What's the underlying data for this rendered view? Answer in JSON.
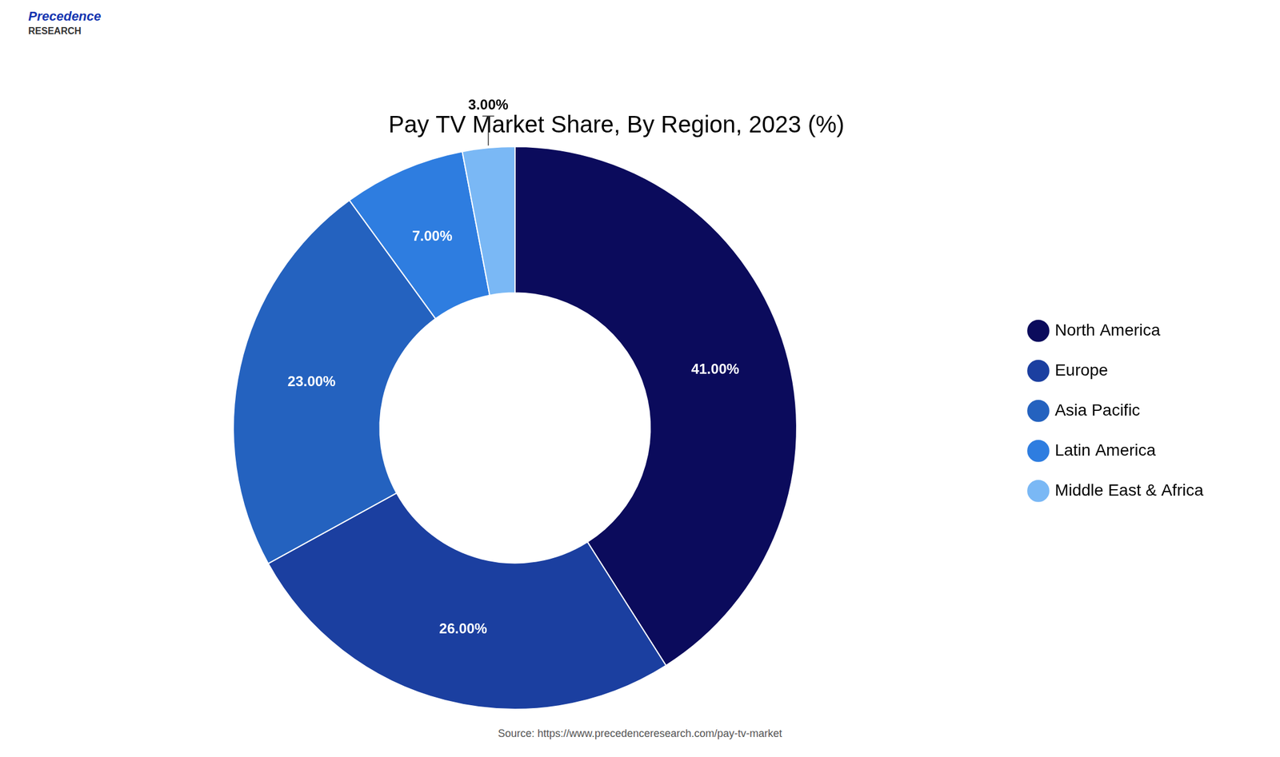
{
  "chart_data": {
    "type": "doughnut",
    "title": "Pay TV Market Share, By Region, 2023 (%)",
    "categories": [
      "North America",
      "Europe",
      "Asia Pacific",
      "Latin America",
      "Middle East & Africa"
    ],
    "values": [
      41,
      26,
      23,
      7,
      3
    ],
    "value_labels": [
      "41.00%",
      "26.00%",
      "23.00%",
      "7.00%",
      "3.00%"
    ],
    "data_labels": true,
    "colors": [
      "#0b0b5c",
      "#1b3fa0",
      "#2462bf",
      "#2e7de0",
      "#7ab8f5"
    ],
    "legend": "right",
    "annotations": [
      "Precedence",
      "RESEARCH",
      "Source: https://www.precedenceresearch.com/pay-tv-market"
    ]
  }
}
